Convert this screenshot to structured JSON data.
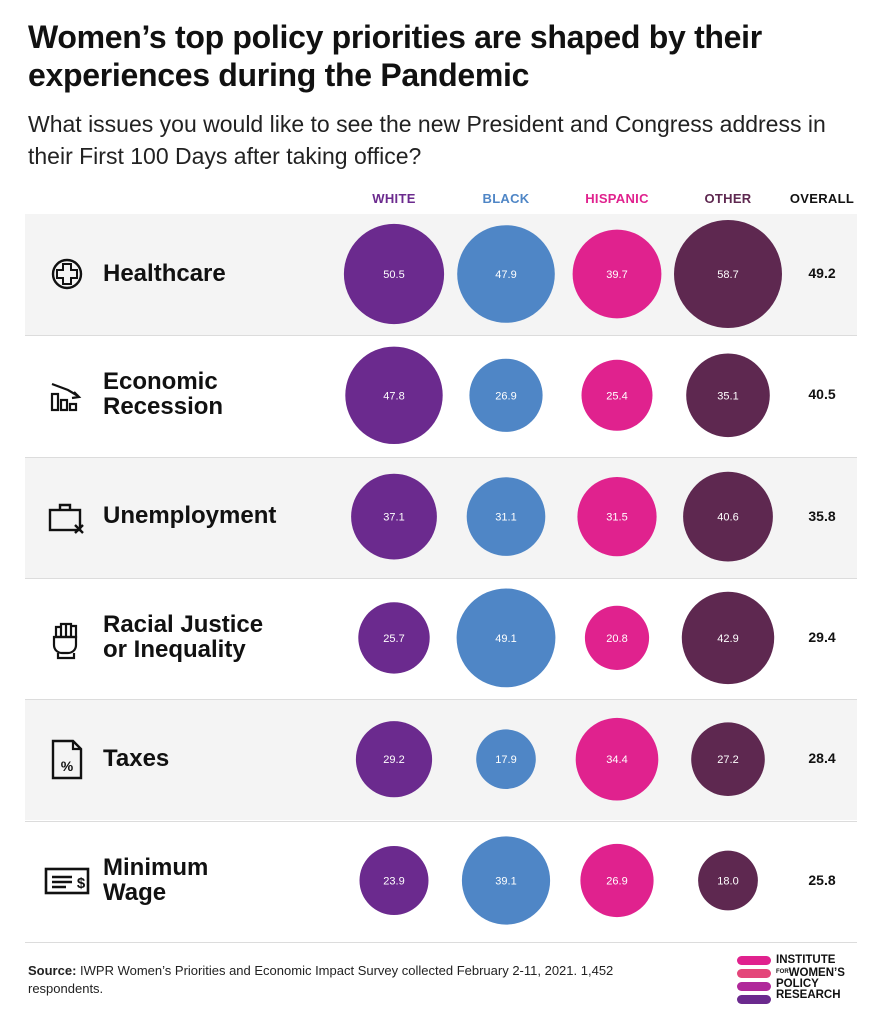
{
  "title": "Women’s top policy priorities are shaped by their experiences during the Pandemic",
  "subtitle": "What issues you would like to see the new President and Congress address in their First 100 Days after taking office?",
  "chart_data": {
    "type": "bubble-table",
    "columns": [
      {
        "label": "WHITE",
        "color": "#6b2a8e"
      },
      {
        "label": "BLACK",
        "color": "#4f86c6"
      },
      {
        "label": "HISPANIC",
        "color": "#e0228e"
      },
      {
        "label": "OTHER",
        "color": "#5e2850"
      }
    ],
    "overall_label": "OVERALL",
    "rows": [
      {
        "label": "Healthcare",
        "icon": "plus-circle-icon",
        "values": [
          "50.5",
          "47.9",
          "39.7",
          "58.7"
        ],
        "overall": "49.2"
      },
      {
        "label": "Economic\nRecession",
        "icon": "declining-bar-chart-icon",
        "values": [
          "47.8",
          "26.9",
          "25.4",
          "35.1"
        ],
        "overall": "40.5"
      },
      {
        "label": "Unemployment",
        "icon": "briefcase-x-icon",
        "values": [
          "37.1",
          "31.1",
          "31.5",
          "40.6"
        ],
        "overall": "35.8"
      },
      {
        "label": "Racial Justice\nor Inequality",
        "icon": "raised-fist-icon",
        "values": [
          "25.7",
          "49.1",
          "20.8",
          "42.9"
        ],
        "overall": "29.4"
      },
      {
        "label": "Taxes",
        "icon": "percent-document-icon",
        "values": [
          "29.2",
          "17.9",
          "34.4",
          "27.2"
        ],
        "overall": "28.4"
      },
      {
        "label": "Minimum\nWage",
        "icon": "paycheck-icon",
        "values": [
          "23.9",
          "39.1",
          "26.9",
          "18.0"
        ],
        "overall": "25.8"
      }
    ]
  },
  "source": {
    "label": "Source:",
    "text": "IWPR Women’s Priorities and Economic Impact Survey collected February 2-11, 2021. 1,452 respondents."
  },
  "logo": {
    "line1": "INSTITUTE",
    "for": "FOR",
    "line2": "WOMEN’S",
    "line3": "POLICY",
    "line4": "RESEARCH"
  }
}
